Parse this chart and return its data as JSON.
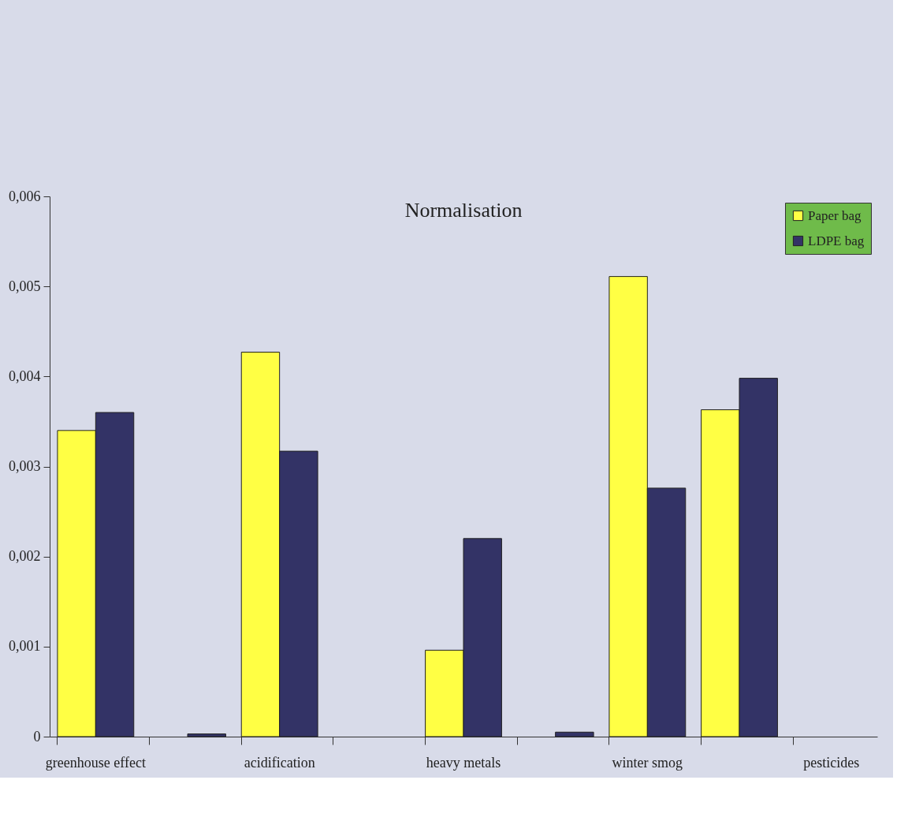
{
  "chart_data": {
    "type": "bar",
    "title": "Normalisation",
    "categories": [
      "greenhouse effect",
      null,
      "acidification",
      null,
      "heavy metals",
      null,
      "winter smog",
      null,
      "pesticides"
    ],
    "series": [
      {
        "name": "Paper bag",
        "color": "#ffff44",
        "values": [
          0.0034,
          null,
          0.00427,
          null,
          0.00096,
          null,
          0.00511,
          0.00363,
          null
        ]
      },
      {
        "name": "LDPE bag",
        "color": "#333366",
        "values": [
          0.0036,
          3e-05,
          0.00317,
          null,
          0.0022,
          5e-05,
          0.00276,
          0.00398,
          null
        ]
      }
    ],
    "ylim": [
      0,
      0.006
    ],
    "yticks": [
      {
        "value": 0,
        "label": "0"
      },
      {
        "value": 0.001,
        "label": "0,001"
      },
      {
        "value": 0.002,
        "label": "0,002"
      },
      {
        "value": 0.003,
        "label": "0,003"
      },
      {
        "value": 0.004,
        "label": "0,004"
      },
      {
        "value": 0.005,
        "label": "0,005"
      },
      {
        "value": 0.006,
        "label": "0,006"
      }
    ],
    "grid": false,
    "legend": "top right"
  }
}
